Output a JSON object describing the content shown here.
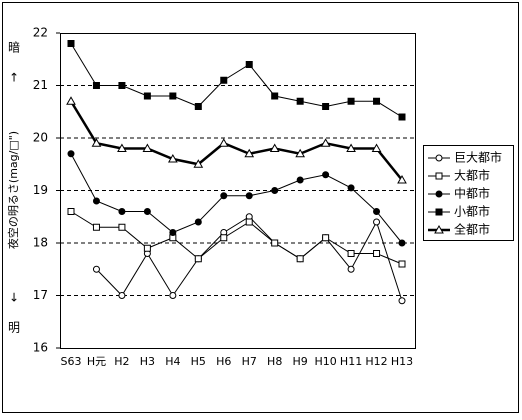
{
  "chart_data": {
    "type": "line",
    "y_label": "夜空の明るさ(mag/□\")",
    "annotations": [
      "暗",
      "↑",
      "↓",
      "明"
    ],
    "categories": [
      "S63",
      "H元",
      "H2",
      "H3",
      "H4",
      "H5",
      "H6",
      "H7",
      "H8",
      "H9",
      "H10",
      "H11",
      "H12",
      "H13"
    ],
    "ylim": [
      16,
      22
    ],
    "yticks": [
      16,
      17,
      18,
      19,
      20,
      21,
      22
    ],
    "grid": true,
    "legend": "right",
    "series": [
      {
        "name": "巨大都市",
        "color": "#000000",
        "marker": "circle-open",
        "line_width": 1,
        "values": [
          null,
          17.5,
          17.0,
          17.8,
          17.0,
          17.7,
          18.2,
          18.5,
          18.0,
          17.7,
          18.1,
          17.5,
          18.4,
          16.9
        ]
      },
      {
        "name": "大都市",
        "color": "#000000",
        "marker": "square-open",
        "line_width": 1,
        "values": [
          18.6,
          18.3,
          18.3,
          17.9,
          18.1,
          17.7,
          18.1,
          18.4,
          18.0,
          17.7,
          18.1,
          17.8,
          17.8,
          17.6
        ]
      },
      {
        "name": "中都市",
        "color": "#000000",
        "marker": "circle-filled",
        "line_width": 1,
        "values": [
          19.7,
          18.8,
          18.6,
          18.6,
          18.2,
          18.4,
          18.9,
          18.9,
          19.0,
          19.2,
          19.3,
          19.05,
          18.6,
          18.0
        ]
      },
      {
        "name": "小都市",
        "color": "#000000",
        "marker": "square-filled",
        "line_width": 1,
        "values": [
          21.8,
          21.0,
          21.0,
          20.8,
          20.8,
          20.6,
          21.1,
          21.4,
          20.8,
          20.7,
          20.6,
          20.7,
          20.7,
          20.4
        ]
      },
      {
        "name": "全都市",
        "color": "#000000",
        "marker": "triangle-open",
        "line_width": 2.5,
        "values": [
          20.7,
          19.9,
          19.8,
          19.8,
          19.6,
          19.5,
          19.9,
          19.7,
          19.8,
          19.7,
          19.9,
          19.8,
          19.8,
          19.2
        ]
      }
    ]
  }
}
